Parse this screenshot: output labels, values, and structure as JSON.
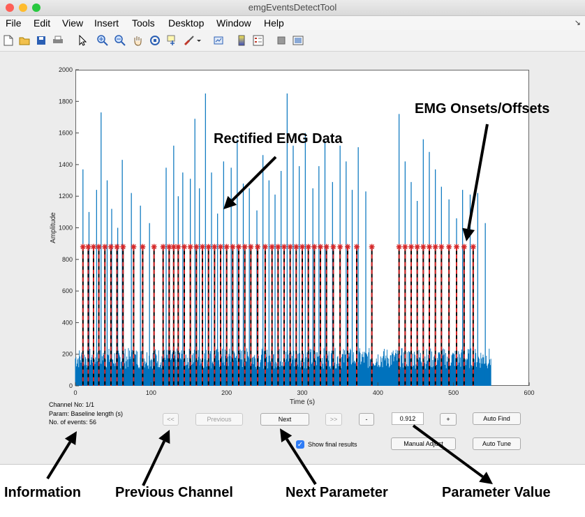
{
  "window": {
    "title": "emgEventsDetectTool",
    "traffic_light_colors": [
      "#fe5f57",
      "#febc2e",
      "#28c840"
    ]
  },
  "menubar": {
    "items": [
      "File",
      "Edit",
      "View",
      "Insert",
      "Tools",
      "Desktop",
      "Window",
      "Help"
    ]
  },
  "toolbar": {
    "icons": [
      "new-figure-icon",
      "open-file-icon",
      "save-icon",
      "print-icon",
      "pointer-icon",
      "zoom-in-icon",
      "zoom-out-icon",
      "pan-hand-icon",
      "rotate-3d-icon",
      "data-cursor-icon",
      "brush-icon",
      "link-plot-icon",
      "colorbar-icon",
      "legend-icon",
      "hide-plot-tools-icon",
      "show-plot-tools-icon"
    ]
  },
  "chart_data": {
    "type": "line",
    "xlabel": "Time (s)",
    "ylabel": "Amplitude",
    "xlim": [
      0,
      600
    ],
    "ylim": [
      0,
      2000
    ],
    "x_ticks": [
      0,
      100,
      200,
      300,
      400,
      500,
      600
    ],
    "y_ticks": [
      0,
      200,
      400,
      600,
      800,
      1000,
      1200,
      1400,
      1600,
      1800,
      2000
    ],
    "signal_color": "#0072bd",
    "event_color": "#d62728",
    "noise_band": {
      "x_range": [
        0,
        550
      ],
      "max_amplitude": 240
    },
    "spikes": [
      {
        "x": 10,
        "y": 1370
      },
      {
        "x": 18,
        "y": 1100
      },
      {
        "x": 28,
        "y": 1240
      },
      {
        "x": 34,
        "y": 1730
      },
      {
        "x": 42,
        "y": 1300
      },
      {
        "x": 48,
        "y": 1120
      },
      {
        "x": 56,
        "y": 1000
      },
      {
        "x": 62,
        "y": 1430
      },
      {
        "x": 74,
        "y": 1220
      },
      {
        "x": 86,
        "y": 1140
      },
      {
        "x": 98,
        "y": 1030
      },
      {
        "x": 120,
        "y": 1380
      },
      {
        "x": 130,
        "y": 1520
      },
      {
        "x": 136,
        "y": 1200
      },
      {
        "x": 142,
        "y": 1350
      },
      {
        "x": 152,
        "y": 1310
      },
      {
        "x": 158,
        "y": 1690
      },
      {
        "x": 164,
        "y": 1250
      },
      {
        "x": 172,
        "y": 1850
      },
      {
        "x": 180,
        "y": 1350
      },
      {
        "x": 188,
        "y": 1090
      },
      {
        "x": 196,
        "y": 1420
      },
      {
        "x": 206,
        "y": 1380
      },
      {
        "x": 214,
        "y": 1560
      },
      {
        "x": 222,
        "y": 1280
      },
      {
        "x": 230,
        "y": 1250
      },
      {
        "x": 240,
        "y": 1110
      },
      {
        "x": 248,
        "y": 1460
      },
      {
        "x": 256,
        "y": 1300
      },
      {
        "x": 264,
        "y": 1210
      },
      {
        "x": 272,
        "y": 1360
      },
      {
        "x": 280,
        "y": 1850
      },
      {
        "x": 288,
        "y": 1520
      },
      {
        "x": 296,
        "y": 1390
      },
      {
        "x": 304,
        "y": 1600
      },
      {
        "x": 314,
        "y": 1250
      },
      {
        "x": 322,
        "y": 1390
      },
      {
        "x": 330,
        "y": 1550
      },
      {
        "x": 340,
        "y": 1290
      },
      {
        "x": 350,
        "y": 1520
      },
      {
        "x": 358,
        "y": 1420
      },
      {
        "x": 366,
        "y": 1240
      },
      {
        "x": 374,
        "y": 1510
      },
      {
        "x": 384,
        "y": 1230
      },
      {
        "x": 428,
        "y": 1720
      },
      {
        "x": 436,
        "y": 1420
      },
      {
        "x": 444,
        "y": 1290
      },
      {
        "x": 452,
        "y": 1170
      },
      {
        "x": 460,
        "y": 1560
      },
      {
        "x": 468,
        "y": 1480
      },
      {
        "x": 476,
        "y": 1370
      },
      {
        "x": 484,
        "y": 1260
      },
      {
        "x": 494,
        "y": 1180
      },
      {
        "x": 504,
        "y": 1060
      },
      {
        "x": 512,
        "y": 1240
      },
      {
        "x": 522,
        "y": 1210
      },
      {
        "x": 532,
        "y": 1220
      },
      {
        "x": 542,
        "y": 1030
      }
    ],
    "event_marker_y": 880,
    "events_x": [
      10,
      17,
      24,
      31,
      39,
      47,
      55,
      63,
      77,
      89,
      104,
      116,
      124,
      130,
      136,
      144,
      152,
      160,
      168,
      176,
      184,
      192,
      200,
      208,
      216,
      224,
      232,
      241,
      251,
      260,
      268,
      276,
      284,
      292,
      300,
      308,
      316,
      324,
      332,
      341,
      350,
      360,
      372,
      392,
      428,
      436,
      444,
      452,
      460,
      468,
      476,
      484,
      494,
      504,
      514,
      526
    ]
  },
  "info": {
    "channel": "Channel No: 1/1",
    "param": "Param: Baseline length (s)",
    "events": "No. of events: 56"
  },
  "controls": {
    "prev_channel": "<<",
    "previous": "Previous",
    "next": "Next",
    "next_channel": ">>",
    "minus": "-",
    "param_value": "0.912",
    "plus": "+",
    "auto_find": "Auto Find",
    "show_final": "Show final results",
    "manual_adjust": "Manual Adjust",
    "auto_tune": "Auto Tune"
  },
  "annotations": {
    "rectified": "Rectified EMG Data",
    "onsets": "EMG Onsets/Offsets",
    "information": "Information",
    "previous_channel": "Previous Channel",
    "next_parameter": "Next Parameter",
    "parameter_value": "Parameter Value"
  }
}
